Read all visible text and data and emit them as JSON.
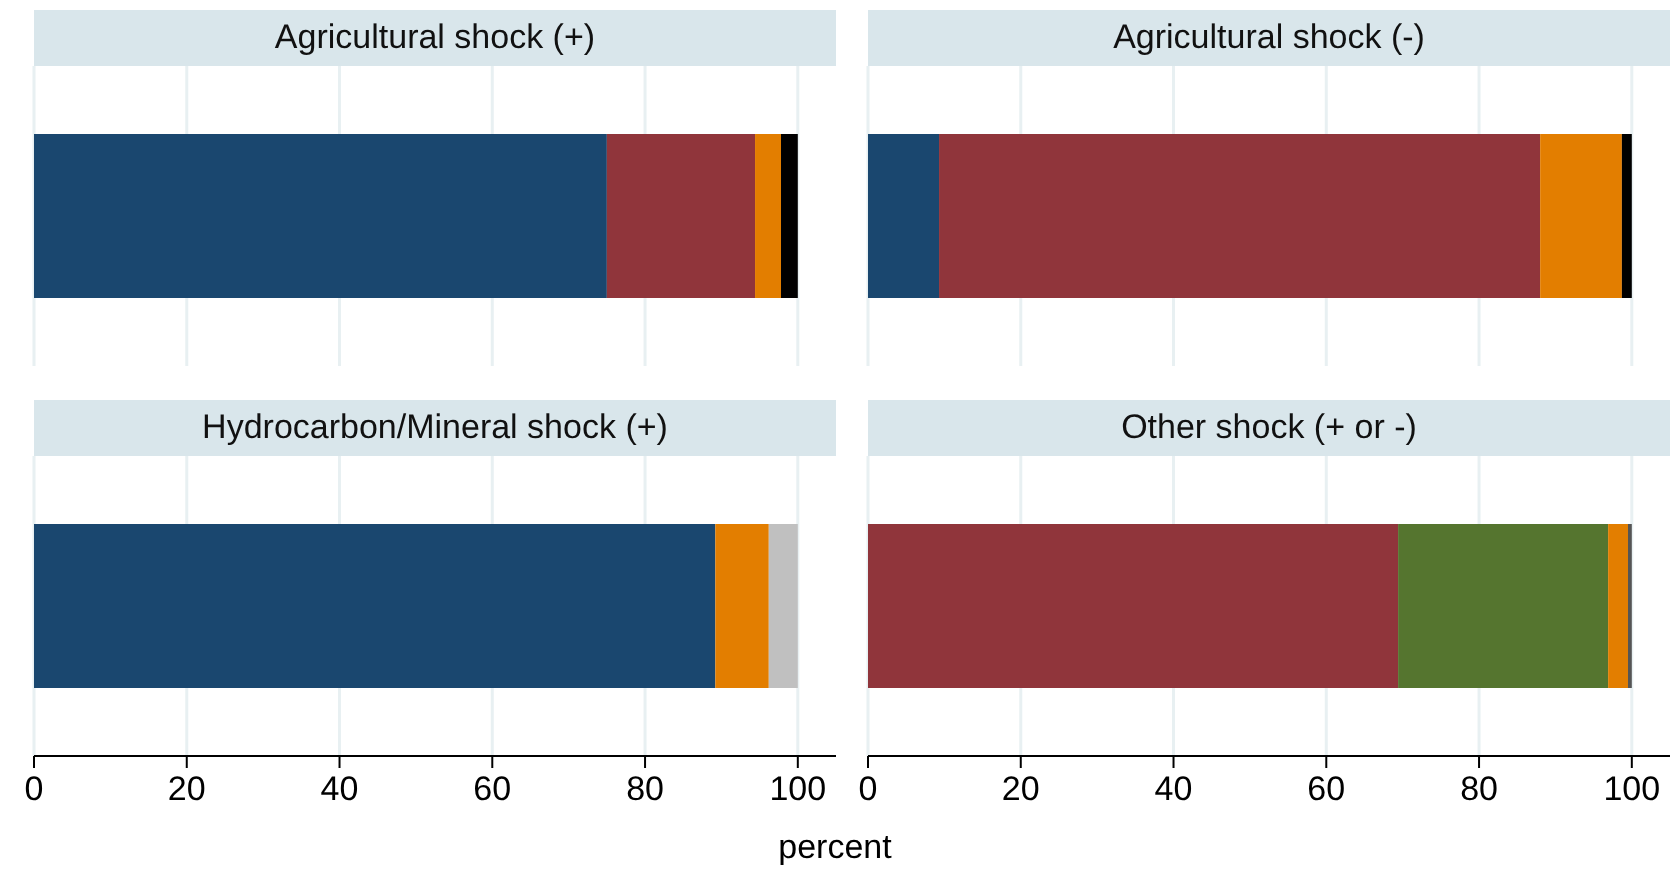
{
  "chart_data": [
    {
      "type": "bar",
      "orientation": "horizontal",
      "stacked": true,
      "title": "Agricultural shock (+)",
      "categories": [
        null
      ],
      "xticks": [
        0,
        20,
        40,
        60,
        80,
        100
      ],
      "grid": "x",
      "tick_labels": false,
      "series": [
        {
          "color": "#1a476f",
          "values": [
            75
          ]
        },
        {
          "color": "#90353b",
          "values": [
            19.4
          ]
        },
        {
          "color": "#e37e00",
          "values": [
            3.4
          ]
        },
        {
          "color": "#000000",
          "values": [
            2.2
          ]
        }
      ]
    },
    {
      "type": "bar",
      "orientation": "horizontal",
      "stacked": true,
      "title": "Agricultural shock (-)",
      "categories": [
        null
      ],
      "xticks": [
        0,
        20,
        40,
        60,
        80,
        100
      ],
      "grid": "x",
      "tick_labels": false,
      "series": [
        {
          "color": "#1a476f",
          "values": [
            9.3
          ]
        },
        {
          "color": "#90353b",
          "values": [
            78.7
          ]
        },
        {
          "color": "#e37e00",
          "values": [
            10.7
          ]
        },
        {
          "color": "#000000",
          "values": [
            1.3
          ]
        }
      ]
    },
    {
      "type": "bar",
      "orientation": "horizontal",
      "stacked": true,
      "title": "Hydrocarbon/Mineral shock (+)",
      "xlabel": "percent",
      "categories": [
        null
      ],
      "xlim": [
        0,
        105
      ],
      "xticks": [
        0,
        20,
        40,
        60,
        80,
        100
      ],
      "grid": "x",
      "tick_labels": "x",
      "series": [
        {
          "color": "#1a476f",
          "values": [
            89.2
          ]
        },
        {
          "color": "#e37e00",
          "values": [
            7.0
          ]
        },
        {
          "color": "#c0c0c0",
          "values": [
            3.8
          ]
        }
      ]
    },
    {
      "type": "bar",
      "orientation": "horizontal",
      "stacked": true,
      "title": "Other shock (+ or -)",
      "categories": [
        null
      ],
      "xlim": [
        0,
        105
      ],
      "xticks": [
        0,
        20,
        40,
        60,
        80,
        100
      ],
      "grid": "x",
      "tick_labels": "x",
      "series": [
        {
          "color": "#90353b",
          "values": [
            69.4
          ]
        },
        {
          "color": "#55752f",
          "values": [
            27.5
          ]
        },
        {
          "color": "#e37e00",
          "values": [
            2.6
          ]
        },
        {
          "color": "#555555",
          "values": [
            0.5
          ]
        }
      ]
    }
  ]
}
